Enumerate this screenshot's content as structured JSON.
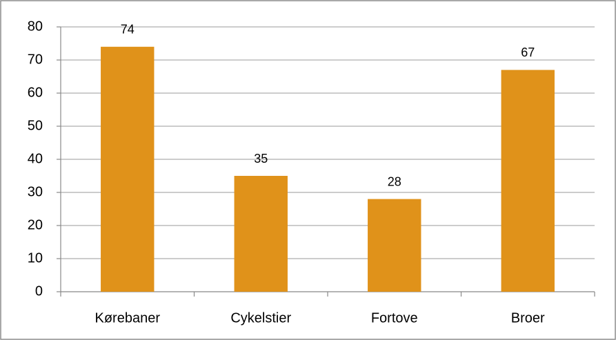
{
  "chart_data": {
    "type": "bar",
    "categories": [
      "Kørebaner",
      "Cykelstier",
      "Fortove",
      "Broer"
    ],
    "values": [
      74,
      35,
      28,
      67
    ],
    "color": "#e0921a",
    "ylim": [
      0,
      80
    ],
    "yticks": [
      0,
      10,
      20,
      30,
      40,
      50,
      60,
      70,
      80
    ],
    "grid": true
  }
}
